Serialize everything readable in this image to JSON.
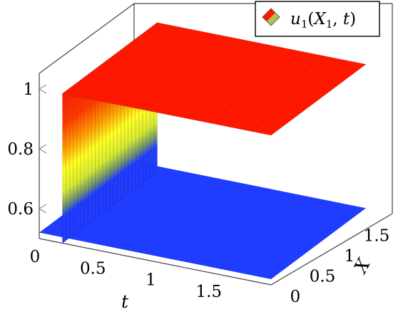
{
  "chart_data": {
    "type": "surface3d",
    "title": "",
    "xlabel": "t",
    "ylabel": "X",
    "zlabel": "",
    "xlim": [
      0,
      2
    ],
    "ylim": [
      0,
      1.75
    ],
    "zlim": [
      0.5,
      1.05
    ],
    "x_ticks": [
      "0",
      "0.5",
      "1",
      "1.5"
    ],
    "y_ticks": [
      "0",
      "0.5",
      "1",
      "1.5"
    ],
    "z_ticks": [
      "0.6",
      "0.8",
      "1"
    ],
    "z_tick_values": [
      0.6,
      0.8,
      1.0
    ],
    "legend": {
      "label": "u_1(X_1, t)",
      "position": "top-right"
    },
    "colormap": [
      "#1f3cff",
      "#6b9070",
      "#ffff22",
      "#ff9a00",
      "#ff1800"
    ],
    "surface": {
      "description_values": "u rises from 0.5 (t=0, all X) in a sharp front near t≈0.2 to ~1.0; plateau value rises with X",
      "t": [
        0,
        0.1,
        0.15,
        0.2,
        0.25,
        0.3,
        0.5,
        1.0,
        1.5,
        2.0
      ],
      "X": [
        0,
        0.35,
        0.7,
        1.05,
        1.4,
        1.75
      ],
      "u_at_X_min": [
        0.5,
        0.5,
        0.52,
        0.62,
        0.72,
        0.78,
        0.8,
        0.82,
        0.84,
        0.85
      ],
      "u_at_X_max": [
        0.5,
        0.5,
        0.55,
        0.75,
        0.92,
        0.98,
        1.0,
        1.0,
        1.0,
        1.0
      ]
    }
  }
}
